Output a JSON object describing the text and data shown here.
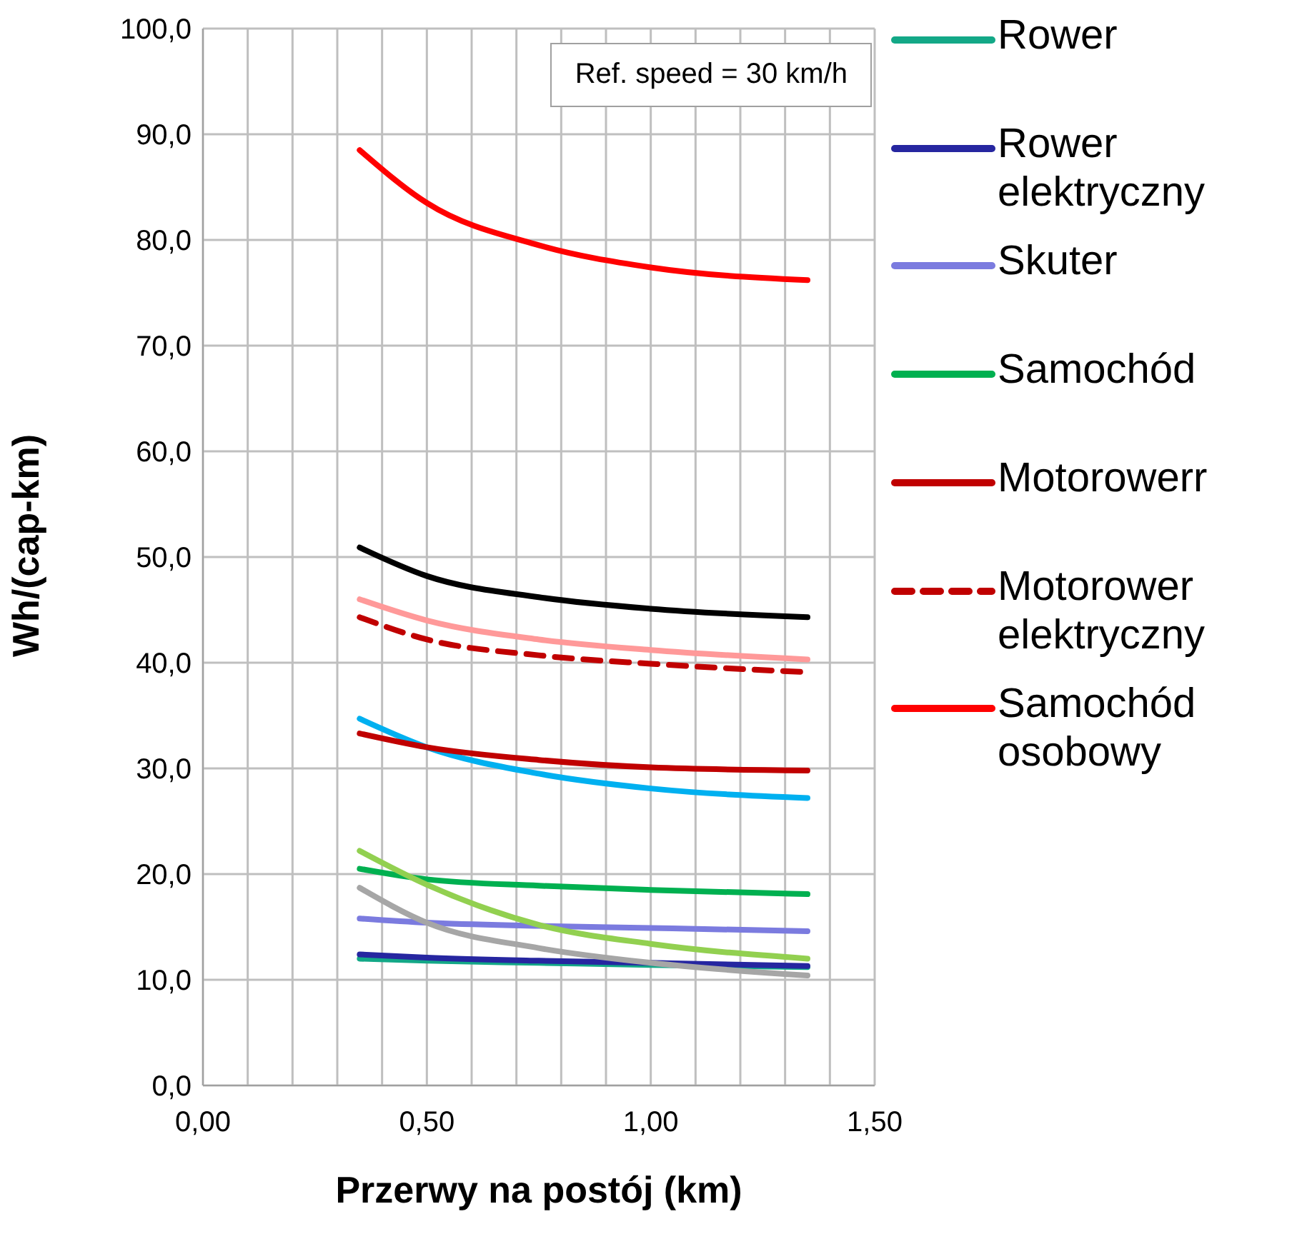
{
  "chart_data": {
    "type": "line",
    "xlabel": "Przerwy na postój (km)",
    "ylabel": "Wh/(cap-km)",
    "annotations": [
      "Ref. speed = 30 km/h"
    ],
    "xlim": [
      0,
      1.5
    ],
    "ylim": [
      0,
      100
    ],
    "xticks": [
      {
        "value": 0,
        "label": "0,00"
      },
      {
        "value": 0.1,
        "label": null
      },
      {
        "value": 0.2,
        "label": null
      },
      {
        "value": 0.3,
        "label": null
      },
      {
        "value": 0.4,
        "label": null
      },
      {
        "value": 0.5,
        "label": "0,50"
      },
      {
        "value": 0.6,
        "label": null
      },
      {
        "value": 0.7,
        "label": null
      },
      {
        "value": 0.8,
        "label": null
      },
      {
        "value": 0.9,
        "label": null
      },
      {
        "value": 1,
        "label": "1,00"
      },
      {
        "value": 1.1,
        "label": null
      },
      {
        "value": 1.2,
        "label": null
      },
      {
        "value": 1.3,
        "label": null
      },
      {
        "value": 1.4,
        "label": null
      },
      {
        "value": 1.5,
        "label": "1,50"
      }
    ],
    "yticks": [
      {
        "value": 0,
        "label": "0,0"
      },
      {
        "value": 10,
        "label": "10,0"
      },
      {
        "value": 20,
        "label": "20,0"
      },
      {
        "value": 30,
        "label": "30,0"
      },
      {
        "value": 40,
        "label": "40,0"
      },
      {
        "value": 50,
        "label": "50,0"
      },
      {
        "value": 60,
        "label": "60,0"
      },
      {
        "value": 70,
        "label": "70,0"
      },
      {
        "value": 80,
        "label": "80,0"
      },
      {
        "value": 90,
        "label": "90,0"
      },
      {
        "value": 100,
        "label": "100,0"
      }
    ],
    "grid": true,
    "legend": "right",
    "marker": "none",
    "x": [
      0.35,
      0.5,
      0.75,
      1.0,
      1.35
    ],
    "series": [
      {
        "name": "Rower",
        "color": "#13a887",
        "values": [
          12.0,
          11.8,
          11.6,
          11.4,
          11.2
        ]
      },
      {
        "name": "Rower elektryczny",
        "color": "#2626a0",
        "values": [
          12.4,
          12.1,
          11.8,
          11.6,
          11.3
        ]
      },
      {
        "color": "#00b0f0",
        "values": [
          34.7,
          32.0,
          29.5,
          28.1,
          27.2
        ]
      },
      {
        "name": "Skuter",
        "color": "#7b7bdf",
        "values": [
          15.8,
          15.4,
          15.1,
          14.9,
          14.6
        ]
      },
      {
        "name": "Samochód",
        "color": "#00b050",
        "values": [
          20.5,
          19.5,
          18.9,
          18.5,
          18.1
        ]
      },
      {
        "name": "Motorowerr",
        "color": "#c00000",
        "values": [
          33.3,
          32.0,
          30.8,
          30.1,
          29.8
        ]
      },
      {
        "name": "Motorower elektryczny",
        "color": "#c00000",
        "line_style": "dashed",
        "values": [
          44.3,
          42.2,
          40.7,
          39.9,
          39.1
        ]
      },
      {
        "color": "#ff9999",
        "values": [
          46.0,
          44.0,
          42.2,
          41.2,
          40.3
        ]
      },
      {
        "color": "#000000",
        "values": [
          50.9,
          48.2,
          46.2,
          45.1,
          44.3
        ]
      },
      {
        "name": "Samochód osobowy",
        "color": "#ff0000",
        "values": [
          88.5,
          83.5,
          79.5,
          77.4,
          76.2
        ]
      },
      {
        "color": "#92d050",
        "values": [
          22.2,
          19.0,
          15.2,
          13.4,
          12.0
        ]
      },
      {
        "color": "#a6a6a6",
        "values": [
          18.7,
          15.4,
          13.0,
          11.6,
          10.4
        ]
      }
    ]
  }
}
